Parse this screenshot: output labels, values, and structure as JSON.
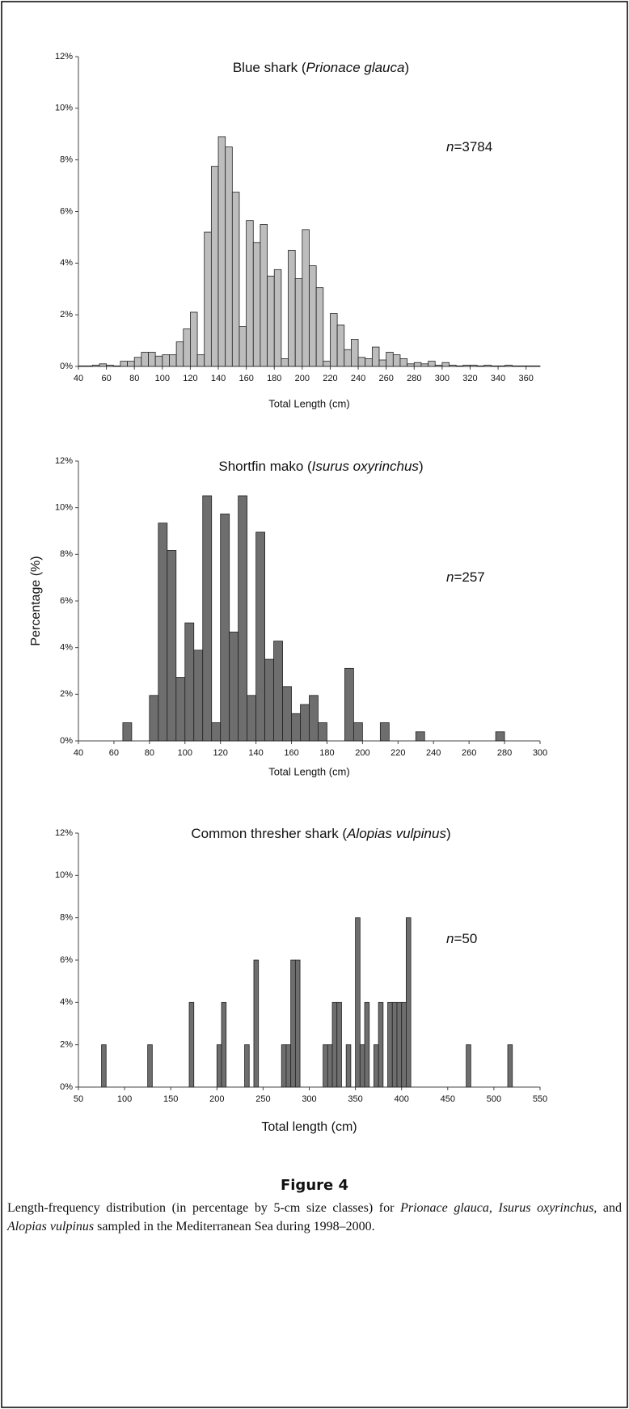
{
  "chart_data": [
    {
      "type": "histogram",
      "title": [
        "Blue shark (",
        "Prionace glauca",
        ")"
      ],
      "annotation": [
        "n",
        "=3784"
      ],
      "xlabel": "Total Length  (cm)",
      "color": "#bdbdbd",
      "bins": [
        40,
        45,
        50,
        55,
        60,
        65,
        70,
        75,
        80,
        85,
        90,
        95,
        100,
        105,
        110,
        115,
        120,
        125,
        130,
        135,
        140,
        145,
        150,
        155,
        160,
        165,
        170,
        175,
        180,
        185,
        190,
        195,
        200,
        205,
        210,
        215,
        220,
        225,
        230,
        235,
        240,
        245,
        250,
        255,
        260,
        265,
        270,
        275,
        280,
        285,
        290,
        295,
        300,
        305,
        310,
        315,
        320,
        325,
        330,
        335,
        340,
        345,
        350,
        355,
        360,
        365,
        370
      ],
      "values": [
        0.02,
        0.02,
        0.05,
        0.1,
        0.05,
        0.02,
        0.2,
        0.2,
        0.35,
        0.55,
        0.55,
        0.4,
        0.45,
        0.45,
        0.95,
        1.45,
        2.1,
        0.45,
        5.2,
        7.75,
        8.9,
        8.5,
        6.75,
        1.55,
        5.65,
        4.8,
        5.5,
        3.5,
        3.75,
        0.3,
        4.5,
        3.4,
        5.3,
        3.9,
        3.05,
        0.2,
        2.05,
        1.6,
        0.65,
        1.05,
        0.35,
        0.3,
        0.75,
        0.25,
        0.55,
        0.45,
        0.3,
        0.1,
        0.15,
        0.1,
        0.2,
        0.05,
        0.15,
        0.05,
        0.02,
        0.05,
        0.05,
        0.02,
        0.05,
        0.02,
        0.02,
        0.05,
        0.02,
        0.02,
        0.02,
        0.02
      ],
      "xlim": [
        40,
        370
      ],
      "xticks": [
        40,
        60,
        80,
        100,
        120,
        140,
        160,
        180,
        200,
        220,
        240,
        260,
        280,
        300,
        320,
        340,
        360
      ],
      "ylim": [
        0,
        12
      ],
      "yticks": [
        {
          "value": 0,
          "label": "0%"
        },
        {
          "value": 2,
          "label": "2%"
        },
        {
          "value": 4,
          "label": "4%"
        },
        {
          "value": 6,
          "label": "6%"
        },
        {
          "value": 8,
          "label": "8%"
        },
        {
          "value": 10,
          "label": "10%"
        },
        {
          "value": 12,
          "label": "12%"
        }
      ]
    },
    {
      "type": "histogram",
      "title": [
        "Shortfin mako (",
        "Isurus oxyrinchus",
        ")"
      ],
      "annotation": [
        "n",
        "=257"
      ],
      "xlabel": "Total Length  (cm)",
      "ylabel": "Percentage (%)",
      "color": "#6e6e6e",
      "bins": [
        40,
        45,
        50,
        55,
        60,
        65,
        70,
        75,
        80,
        85,
        90,
        95,
        100,
        105,
        110,
        115,
        120,
        125,
        130,
        135,
        140,
        145,
        150,
        155,
        160,
        165,
        170,
        175,
        180,
        185,
        190,
        195,
        200,
        205,
        210,
        215,
        220,
        225,
        230,
        235,
        240,
        245,
        250,
        255,
        260,
        265,
        270,
        275,
        280,
        285,
        290,
        295,
        300
      ],
      "values": [
        0,
        0,
        0,
        0,
        0,
        0.78,
        0,
        0,
        1.95,
        9.34,
        8.17,
        2.72,
        5.06,
        3.89,
        10.51,
        0.78,
        9.73,
        4.67,
        10.51,
        1.95,
        8.95,
        3.5,
        4.28,
        2.33,
        1.17,
        1.56,
        1.95,
        0.78,
        0,
        0,
        3.11,
        0.78,
        0,
        0,
        0.78,
        0,
        0,
        0,
        0.39,
        0,
        0,
        0,
        0,
        0,
        0,
        0,
        0,
        0.39,
        0,
        0,
        0,
        0
      ],
      "xlim": [
        40,
        300
      ],
      "xticks": [
        40,
        60,
        80,
        100,
        120,
        140,
        160,
        180,
        200,
        220,
        240,
        260,
        280,
        300
      ],
      "ylim": [
        0,
        12
      ],
      "yticks": [
        {
          "value": 0,
          "label": "0%"
        },
        {
          "value": 2,
          "label": "2%"
        },
        {
          "value": 4,
          "label": "4%"
        },
        {
          "value": 6,
          "label": "6%"
        },
        {
          "value": 8,
          "label": "8%"
        },
        {
          "value": 10,
          "label": "10%"
        },
        {
          "value": 12,
          "label": "12%"
        }
      ]
    },
    {
      "type": "histogram",
      "title": [
        "Common thresher shark (",
        "Alopias vulpinus",
        ")"
      ],
      "annotation": [
        "n",
        "=50"
      ],
      "xlabel": "Total length (cm)",
      "color": "#6e6e6e",
      "bins": [
        50,
        55,
        60,
        65,
        70,
        75,
        80,
        85,
        90,
        95,
        100,
        105,
        110,
        115,
        120,
        125,
        130,
        135,
        140,
        145,
        150,
        155,
        160,
        165,
        170,
        175,
        180,
        185,
        190,
        195,
        200,
        205,
        210,
        215,
        220,
        225,
        230,
        235,
        240,
        245,
        250,
        255,
        260,
        265,
        270,
        275,
        280,
        285,
        290,
        295,
        300,
        305,
        310,
        315,
        320,
        325,
        330,
        335,
        340,
        345,
        350,
        355,
        360,
        365,
        370,
        375,
        380,
        385,
        390,
        395,
        400,
        405,
        410,
        415,
        420,
        425,
        430,
        435,
        440,
        445,
        450,
        455,
        460,
        465,
        470,
        475,
        480,
        485,
        490,
        495,
        500,
        505,
        510,
        515,
        520,
        525,
        530,
        535,
        540,
        545,
        550
      ],
      "values": [
        0,
        0,
        0,
        0,
        0,
        2,
        0,
        0,
        0,
        0,
        0,
        0,
        0,
        0,
        0,
        2,
        0,
        0,
        0,
        0,
        0,
        0,
        0,
        0,
        4,
        0,
        0,
        0,
        0,
        0,
        2,
        4,
        0,
        0,
        0,
        0,
        2,
        0,
        6,
        0,
        0,
        0,
        0,
        0,
        2,
        2,
        6,
        6,
        0,
        0,
        0,
        0,
        0,
        2,
        2,
        4,
        4,
        0,
        2,
        0,
        8,
        2,
        4,
        0,
        2,
        4,
        0,
        4,
        4,
        4,
        4,
        8,
        0,
        0,
        0,
        0,
        0,
        0,
        0,
        0,
        0,
        0,
        0,
        0,
        2,
        0,
        0,
        0,
        0,
        0,
        0,
        0,
        0,
        2,
        0,
        0,
        0,
        0,
        0,
        0
      ],
      "xlim": [
        50,
        550
      ],
      "xticks": [
        50,
        100,
        150,
        200,
        250,
        300,
        350,
        400,
        450,
        500,
        550
      ],
      "ylim": [
        0,
        12
      ],
      "yticks": [
        {
          "value": 0,
          "label": "0%"
        },
        {
          "value": 2,
          "label": "2%"
        },
        {
          "value": 4,
          "label": "4%"
        },
        {
          "value": 6,
          "label": "6%"
        },
        {
          "value": 8,
          "label": "8%"
        },
        {
          "value": 10,
          "label": "10%"
        },
        {
          "value": 12,
          "label": "12%"
        }
      ]
    }
  ],
  "figure_label": "Figure 4",
  "caption": [
    "Length-frequency distribution (in percentage by 5-cm size classes) for ",
    "Prionace glauca",
    ", ",
    "Isurus oxyrinchus,",
    " and ",
    "Alopias vulpinus",
    " sampled in the Mediterranean Sea during 1998–2000."
  ]
}
